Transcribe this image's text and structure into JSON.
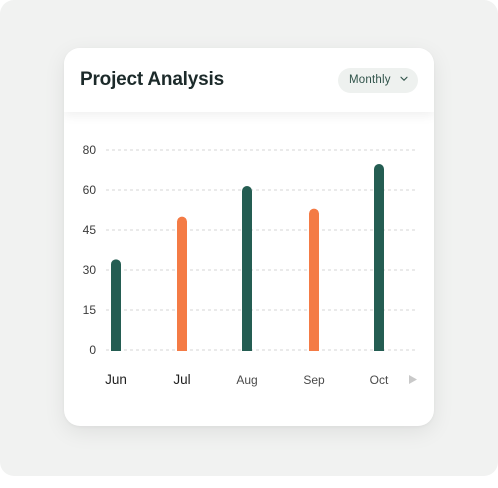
{
  "card": {
    "title": "Project Analysis",
    "period": "Monthly",
    "period_icon": "chevron-down-icon",
    "next_icon": "play-right-icon"
  },
  "colors": {
    "background": "#f1f2f1",
    "card": "#ffffff",
    "bar_green": "#245d52",
    "bar_orange": "#f47b45",
    "grid": "#c9c9c9",
    "text": "#2a2a2a"
  },
  "chart_data": {
    "type": "bar",
    "title": "Project Analysis",
    "xlabel": "",
    "ylabel": "",
    "categories": [
      "Jun",
      "Jul",
      "Aug",
      "Sep",
      "Oct"
    ],
    "values": [
      34,
      50,
      62,
      53,
      73
    ],
    "bar_colors": [
      "#245d52",
      "#f47b45",
      "#245d52",
      "#f47b45",
      "#245d52"
    ],
    "y_ticks": [
      "80",
      "60",
      "45",
      "30",
      "15",
      "0"
    ],
    "grid": true,
    "legend": "none"
  }
}
